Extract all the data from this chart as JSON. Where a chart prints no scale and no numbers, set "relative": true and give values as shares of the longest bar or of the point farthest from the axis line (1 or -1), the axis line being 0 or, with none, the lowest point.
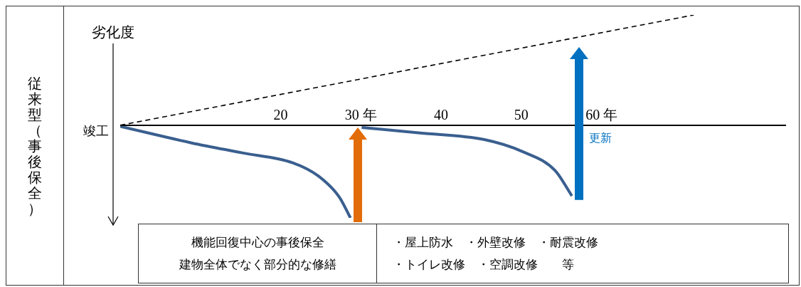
{
  "chart_data": {
    "type": "line",
    "title": "従来型（事後保全）",
    "ylabel": "劣化度",
    "relative": true,
    "xlim": [
      0,
      83
    ],
    "xticks": [
      20,
      {
        "value": 30,
        "label": "30 年"
      },
      40,
      50,
      {
        "value": 60,
        "label": "60 年"
      }
    ],
    "marker": "none",
    "series": [
      {
        "color": "#000000",
        "line_style": "dashed",
        "x": [
          0,
          71.5
        ],
        "values": [
          0,
          1
        ]
      },
      {
        "color": "#3a5f8f",
        "line_style": "solid",
        "x": [
          0,
          8.9,
          15.2,
          21.5,
          24.7,
          27.3,
          28.7
        ],
        "values": [
          -0.01,
          -0.16,
          -0.25,
          -0.34,
          -0.46,
          -0.65,
          -0.84
        ]
      },
      {
        "color": "#3a5f8f",
        "line_style": "solid",
        "x": [
          30.1,
          37.4,
          45.4,
          50.2,
          54.2,
          56.3
        ],
        "values": [
          -0.02,
          -0.07,
          -0.13,
          -0.24,
          -0.41,
          -0.64
        ]
      }
    ],
    "annotations": [
      {
        "text": "竣工",
        "x": 0,
        "y": 0
      },
      "更新",
      "機能回復中心の事後保全",
      "建物全体でなく部分的な修繕",
      "・屋上防水　・外壁改修　・耐震改修",
      "・トイレ改修　・空調改修　　等"
    ]
  }
}
